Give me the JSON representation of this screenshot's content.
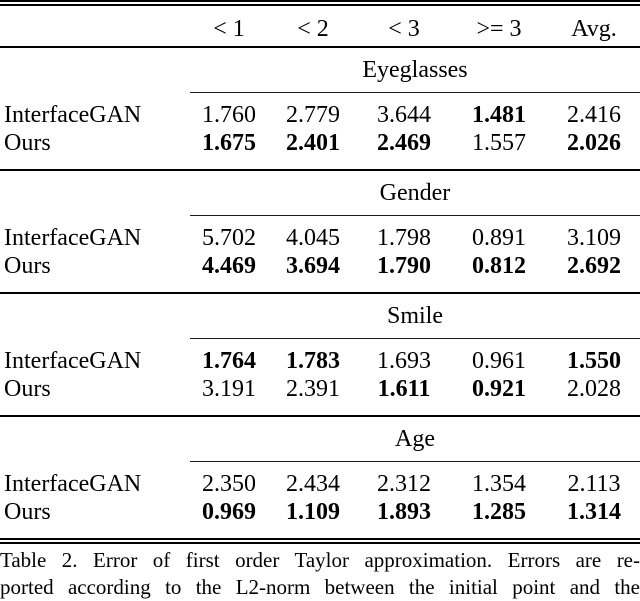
{
  "table": {
    "col_headers": [
      "< 1",
      "< 2",
      "< 3",
      ">= 3",
      "Avg."
    ],
    "sections": [
      {
        "title": "Eyeglasses",
        "rows": [
          {
            "label": "InterfaceGAN",
            "values": [
              "1.760",
              "2.779",
              "3.644",
              "1.481",
              "2.416"
            ],
            "bold": [
              false,
              false,
              false,
              true,
              false
            ]
          },
          {
            "label": "Ours",
            "values": [
              "1.675",
              "2.401",
              "2.469",
              "1.557",
              "2.026"
            ],
            "bold": [
              true,
              true,
              true,
              false,
              true
            ]
          }
        ]
      },
      {
        "title": "Gender",
        "rows": [
          {
            "label": "InterfaceGAN",
            "values": [
              "5.702",
              "4.045",
              "1.798",
              "0.891",
              "3.109"
            ],
            "bold": [
              false,
              false,
              false,
              false,
              false
            ]
          },
          {
            "label": "Ours",
            "values": [
              "4.469",
              "3.694",
              "1.790",
              "0.812",
              "2.692"
            ],
            "bold": [
              true,
              true,
              true,
              true,
              true
            ]
          }
        ]
      },
      {
        "title": "Smile",
        "rows": [
          {
            "label": "InterfaceGAN",
            "values": [
              "1.764",
              "1.783",
              "1.693",
              "0.961",
              "1.550"
            ],
            "bold": [
              true,
              true,
              false,
              false,
              true
            ]
          },
          {
            "label": "Ours",
            "values": [
              "3.191",
              "2.391",
              "1.611",
              "0.921",
              "2.028"
            ],
            "bold": [
              false,
              false,
              true,
              true,
              false
            ]
          }
        ]
      },
      {
        "title": "Age",
        "rows": [
          {
            "label": "InterfaceGAN",
            "values": [
              "2.350",
              "2.434",
              "2.312",
              "1.354",
              "2.113"
            ],
            "bold": [
              false,
              false,
              false,
              false,
              false
            ]
          },
          {
            "label": "Ours",
            "values": [
              "0.969",
              "1.109",
              "1.893",
              "1.285",
              "1.314"
            ],
            "bold": [
              true,
              true,
              true,
              true,
              true
            ]
          }
        ]
      }
    ]
  },
  "caption": {
    "line1": "Table 2. Error of first order Taylor approximation.  Errors are re-",
    "line2": "ported according to the L2-norm between the initial point and the"
  },
  "colors": {
    "text": "#000000",
    "rule": "#000000",
    "background": "#ffffff"
  }
}
